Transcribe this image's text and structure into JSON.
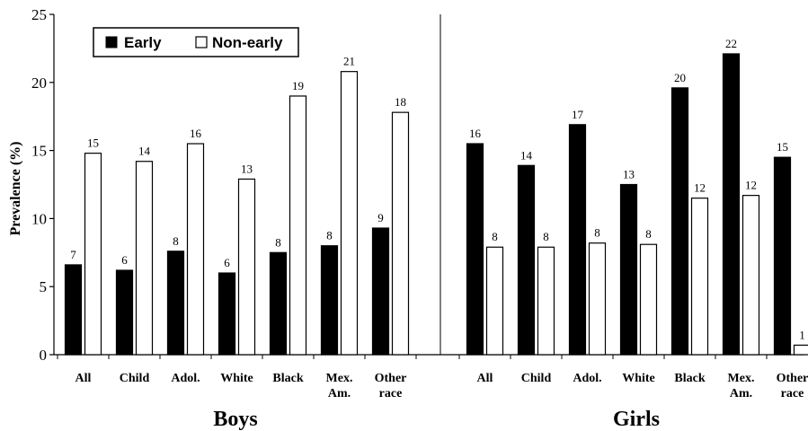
{
  "chart_data": {
    "type": "bar",
    "ylabel": "Prevalence (%)",
    "ylim": [
      0,
      25
    ],
    "yticks": [
      0,
      5,
      10,
      15,
      20,
      25
    ],
    "grid": false,
    "legend_position": "top-left",
    "colors": {
      "Early": "#000000",
      "Non-early": "#ffffff"
    },
    "groups": [
      {
        "name": "Boys",
        "categories": [
          "All",
          "Child",
          "Adol.",
          "White",
          "Black",
          "Mex.\nAm.",
          "Other\nrace"
        ],
        "series": [
          {
            "name": "Early",
            "values": [
              6.6,
              6.2,
              7.6,
              6.0,
              7.5,
              8.0,
              9.3
            ],
            "labels": [
              "7",
              "6",
              "8",
              "6",
              "8",
              "8",
              "9"
            ]
          },
          {
            "name": "Non-early",
            "values": [
              14.8,
              14.2,
              15.5,
              12.9,
              19.0,
              20.8,
              17.8
            ],
            "labels": [
              "15",
              "14",
              "16",
              "13",
              "19",
              "21",
              "18"
            ]
          }
        ]
      },
      {
        "name": "Girls",
        "categories": [
          "All",
          "Child",
          "Adol.",
          "White",
          "Black",
          "Mex.\nAm.",
          "Other\nrace"
        ],
        "series": [
          {
            "name": "Early",
            "values": [
              15.5,
              13.9,
              16.9,
              12.5,
              19.6,
              22.1,
              14.5
            ],
            "labels": [
              "16",
              "14",
              "17",
              "13",
              "20",
              "22",
              "15"
            ]
          },
          {
            "name": "Non-early",
            "values": [
              7.9,
              7.9,
              8.2,
              8.1,
              11.5,
              11.7,
              0.7
            ],
            "labels": [
              "8",
              "8",
              "8",
              "8",
              "12",
              "12",
              "1"
            ]
          }
        ]
      }
    ]
  }
}
